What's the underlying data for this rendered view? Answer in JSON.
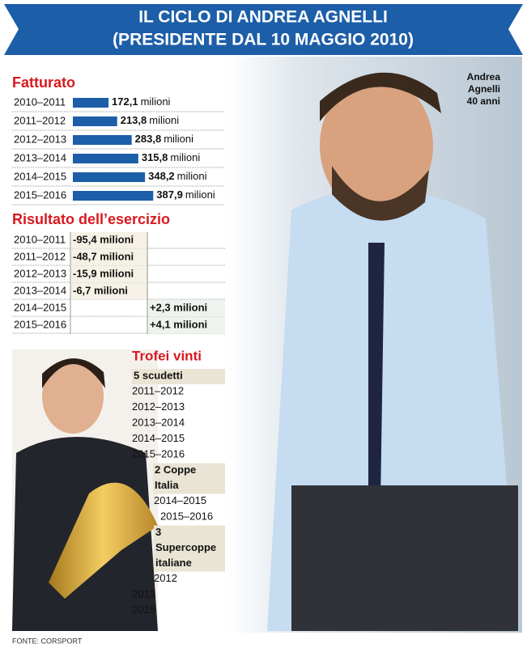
{
  "header": {
    "title_line1": "IL CICLO DI ANDREA AGNELLI",
    "title_line2": "(PRESIDENTE DAL 10 MAGGIO 2010)"
  },
  "photo_caption": [
    "Andrea",
    "Agnelli",
    "40 anni"
  ],
  "fatturato": {
    "title": "Fatturato",
    "unit": "milioni",
    "rows": [
      {
        "period": "2010–2011",
        "value": 172.1,
        "label": "172,1"
      },
      {
        "period": "2011–2012",
        "value": 213.8,
        "label": "213,8"
      },
      {
        "period": "2012–2013",
        "value": 283.8,
        "label": "283,8"
      },
      {
        "period": "2013–2014",
        "value": 315.8,
        "label": "315,8"
      },
      {
        "period": "2014–2015",
        "value": 348.2,
        "label": "348,2"
      },
      {
        "period": "2015–2016",
        "value": 387.9,
        "label": "387,9"
      }
    ]
  },
  "risultato": {
    "title": "Risultato dell’esercizio",
    "rows": [
      {
        "period": "2010–2011",
        "label": "-95,4 milioni"
      },
      {
        "period": "2011–2012",
        "label": "-48,7 milioni"
      },
      {
        "period": "2012–2013",
        "label": "-15,9 milioni"
      },
      {
        "period": "2013–2014",
        "label": "-6,7 milioni"
      },
      {
        "period": "2014–2015",
        "label": "+2,3 milioni"
      },
      {
        "period": "2015–2016",
        "label": "+4,1 milioni"
      }
    ]
  },
  "trofei": {
    "title": "Trofei vinti",
    "groups": [
      {
        "name": [
          "5 scudetti"
        ],
        "years": [
          "2011–2012",
          "2012–2013",
          "2013–2014",
          "2014–2015",
          "2015–2016"
        ]
      },
      {
        "name": [
          "2 Coppe",
          "Italia"
        ],
        "years": [
          "2014–2015",
          "2015–2016"
        ]
      },
      {
        "name": [
          "3",
          "Supercoppe",
          "italiane"
        ],
        "years": [
          "2012",
          "2013",
          "2015"
        ]
      }
    ]
  },
  "source": "FONTE: CORSPORT"
}
